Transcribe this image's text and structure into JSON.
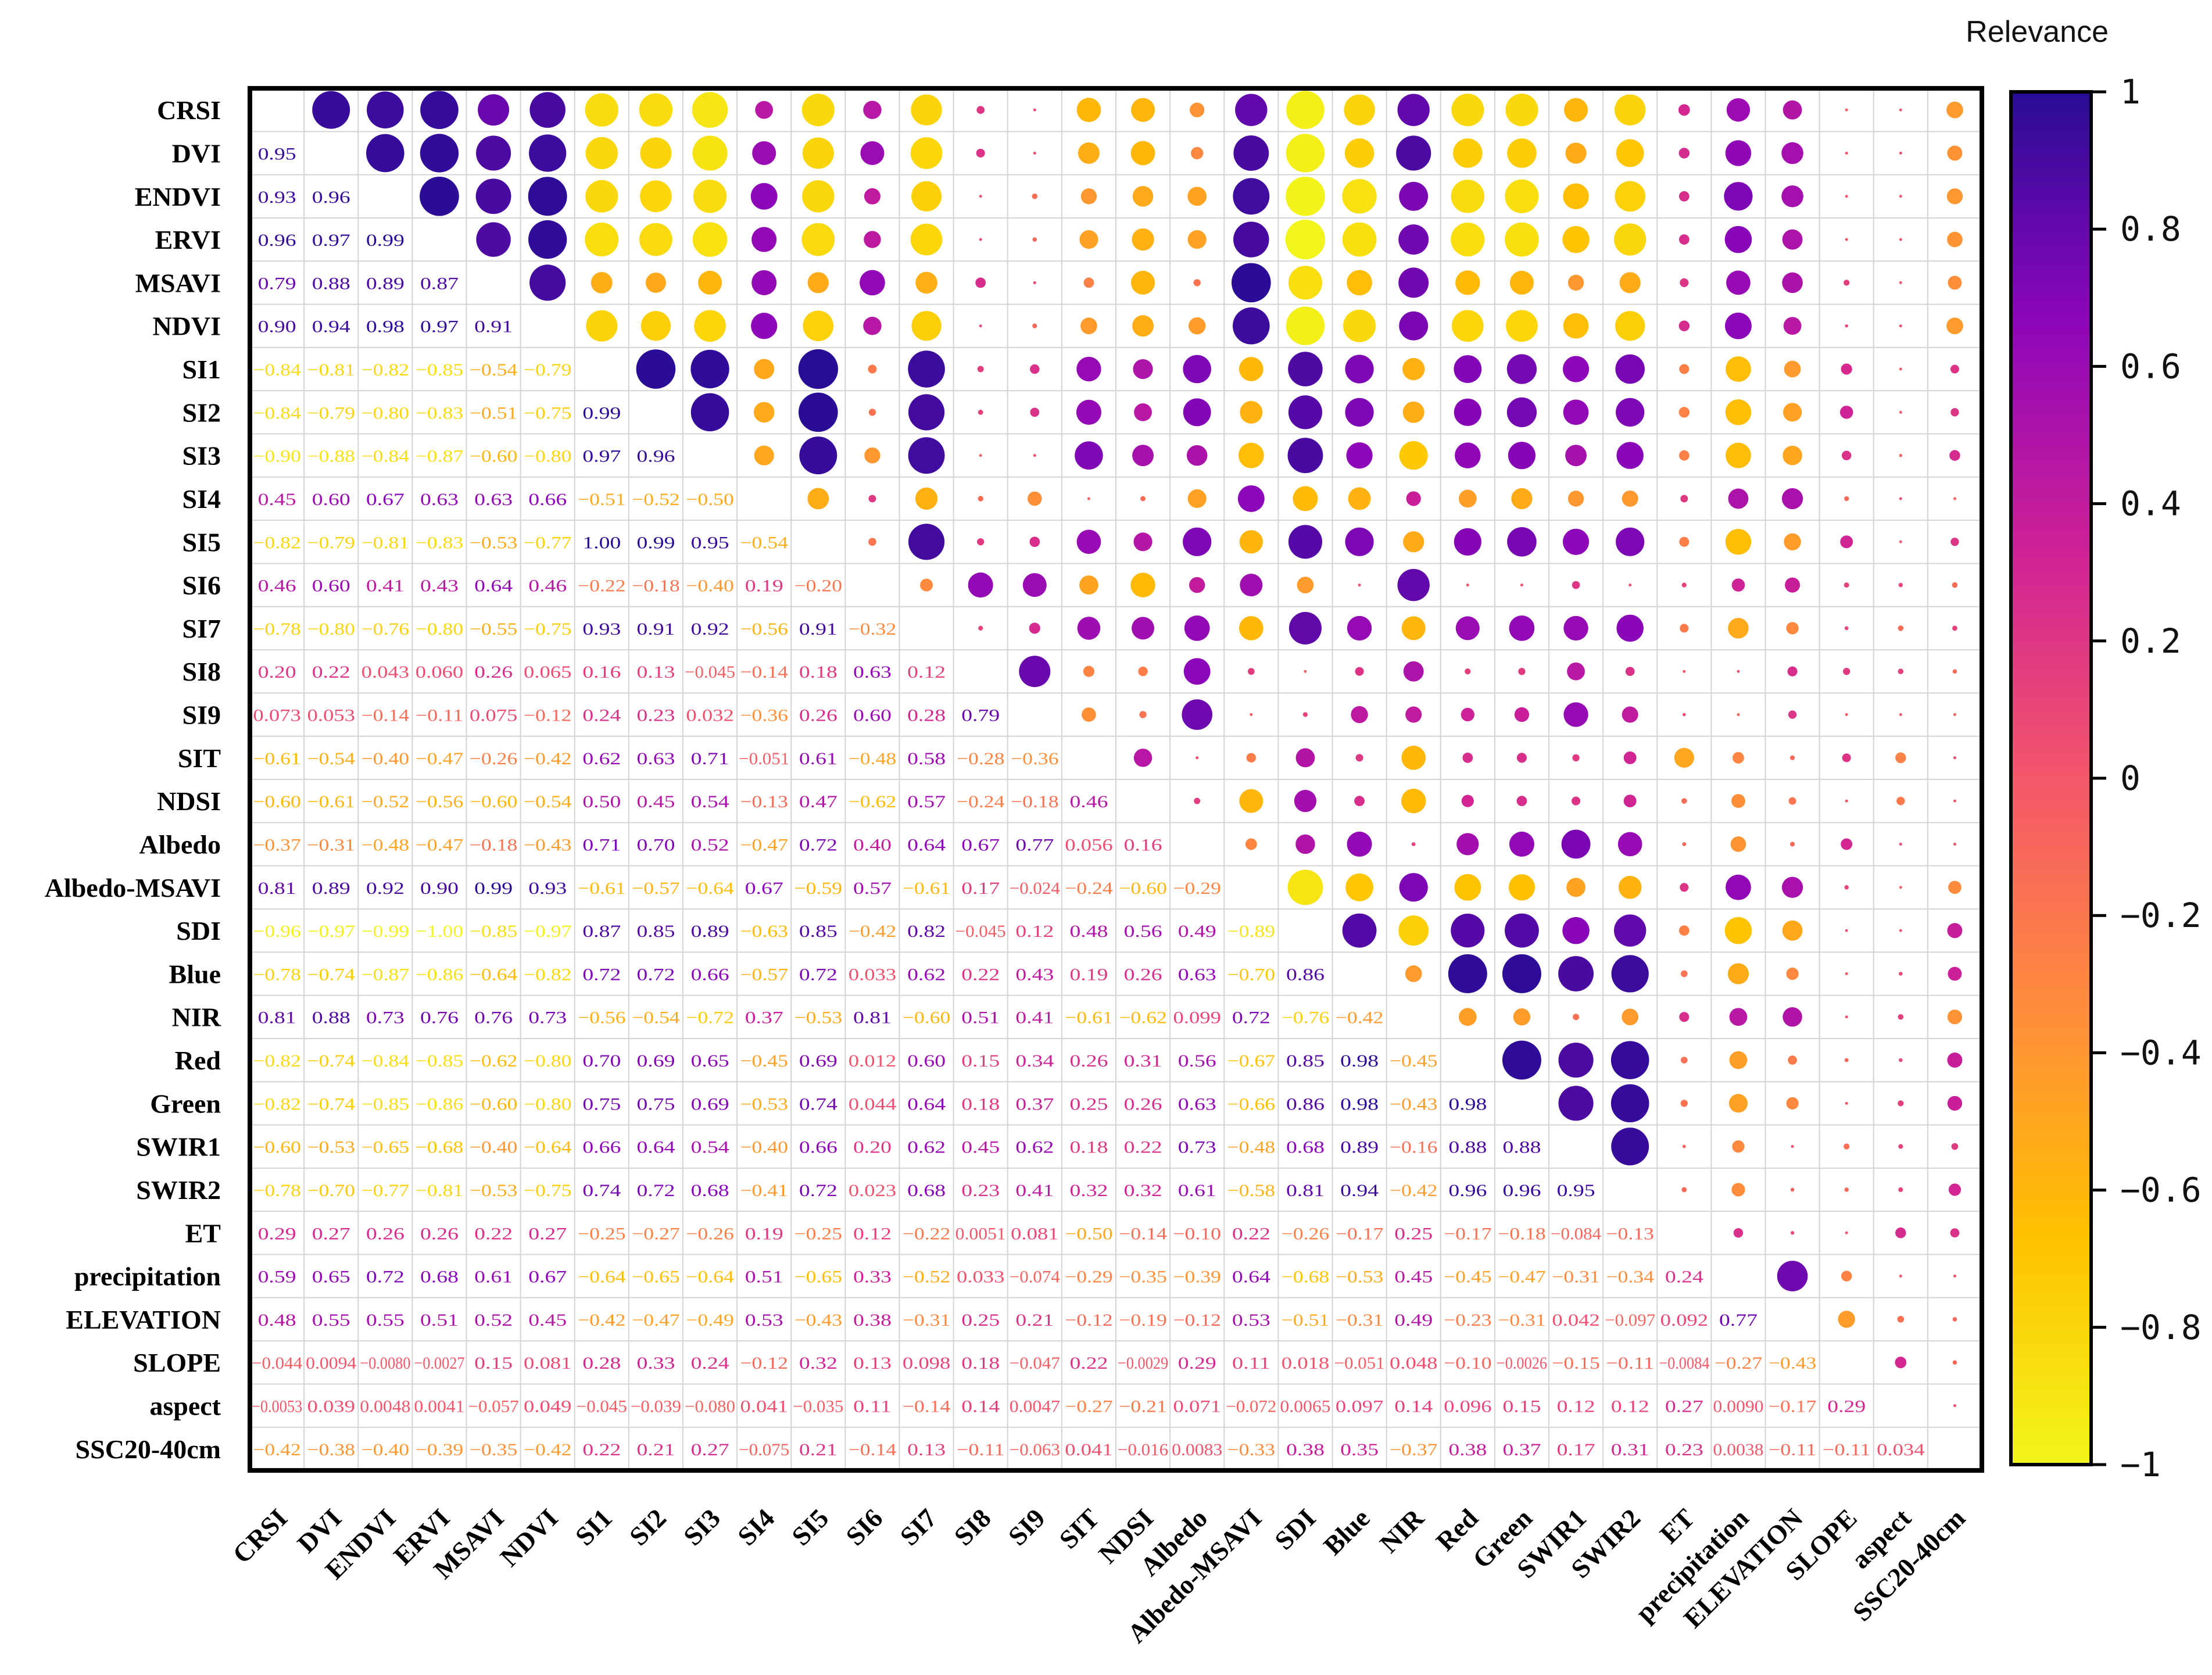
{
  "chart_data": {
    "type": "heatmap",
    "subtype": "correlation-matrix",
    "legend_title": "Relevance",
    "colorbar": {
      "range": [
        -1,
        1
      ],
      "ticks": [
        "1",
        "0.8",
        "0.6",
        "0.4",
        "0.2",
        "0",
        "−0.2",
        "−0.4",
        "−0.6",
        "−0.8",
        "−1"
      ]
    },
    "colors": {
      "scale": [
        "#f2f51c",
        "#ffc100",
        "#ff8c3c",
        "#f4566a",
        "#cf2196",
        "#8d06ba",
        "#280c96"
      ]
    },
    "variables": [
      "CRSI",
      "DVI",
      "ENDVI",
      "ERVI",
      "MSAVI",
      "NDVI",
      "SI1",
      "SI2",
      "SI3",
      "SI4",
      "SI5",
      "SI6",
      "SI7",
      "SI8",
      "SI9",
      "SIT",
      "NDSI",
      "Albedo",
      "Albedo-MSAVI",
      "SDI",
      "Blue",
      "NIR",
      "Red",
      "Green",
      "SWIR1",
      "SWIR2",
      "ET",
      "precipitation",
      "ELEVATION",
      "SLOPE",
      "aspect",
      "SSC20-40cm"
    ],
    "lower_triangle_labels": [
      [],
      [
        "0.95"
      ],
      [
        "0.93",
        "0.96"
      ],
      [
        "0.96",
        "0.97",
        "0.99"
      ],
      [
        "0.79",
        "0.88",
        "0.89",
        "0.87"
      ],
      [
        "0.90",
        "0.94",
        "0.98",
        "0.97",
        "0.91"
      ],
      [
        "−0.84",
        "−0.81",
        "−0.82",
        "−0.85",
        "−0.54",
        "−0.79"
      ],
      [
        "−0.84",
        "−0.79",
        "−0.80",
        "−0.83",
        "−0.51",
        "−0.75",
        "0.99"
      ],
      [
        "−0.90",
        "−0.88",
        "−0.84",
        "−0.87",
        "−0.60",
        "−0.80",
        "0.97",
        "0.96"
      ],
      [
        "0.45",
        "0.60",
        "0.67",
        "0.63",
        "0.63",
        "0.66",
        "−0.51",
        "−0.52",
        "−0.50"
      ],
      [
        "−0.82",
        "−0.79",
        "−0.81",
        "−0.83",
        "−0.53",
        "−0.77",
        "1.00",
        "0.99",
        "0.95",
        "−0.54"
      ],
      [
        "0.46",
        "0.60",
        "0.41",
        "0.43",
        "0.64",
        "0.46",
        "−0.22",
        "−0.18",
        "−0.40",
        "0.19",
        "−0.20"
      ],
      [
        "−0.78",
        "−0.80",
        "−0.76",
        "−0.80",
        "−0.55",
        "−0.75",
        "0.93",
        "0.91",
        "0.92",
        "−0.56",
        "0.91",
        "−0.32"
      ],
      [
        "0.20",
        "0.22",
        "0.043",
        "0.060",
        "0.26",
        "0.065",
        "0.16",
        "0.13",
        "−0.045",
        "−0.14",
        "0.18",
        "0.63",
        "0.12"
      ],
      [
        "0.073",
        "0.053",
        "−0.14",
        "−0.11",
        "0.075",
        "−0.12",
        "0.24",
        "0.23",
        "0.032",
        "−0.36",
        "0.26",
        "0.60",
        "0.28",
        "0.79"
      ],
      [
        "−0.61",
        "−0.54",
        "−0.40",
        "−0.47",
        "−0.26",
        "−0.42",
        "0.62",
        "0.63",
        "0.71",
        "−0.051",
        "0.61",
        "−0.48",
        "0.58",
        "−0.28",
        "−0.36"
      ],
      [
        "−0.60",
        "−0.61",
        "−0.52",
        "−0.56",
        "−0.60",
        "−0.54",
        "0.50",
        "0.45",
        "0.54",
        "−0.13",
        "0.47",
        "−0.62",
        "0.57",
        "−0.24",
        "−0.18",
        "0.46"
      ],
      [
        "−0.37",
        "−0.31",
        "−0.48",
        "−0.47",
        "−0.18",
        "−0.43",
        "0.71",
        "0.70",
        "0.52",
        "−0.47",
        "0.72",
        "0.40",
        "0.64",
        "0.67",
        "0.77",
        "0.056",
        "0.16"
      ],
      [
        "0.81",
        "0.89",
        "0.92",
        "0.90",
        "0.99",
        "0.93",
        "−0.61",
        "−0.57",
        "−0.64",
        "0.67",
        "−0.59",
        "0.57",
        "−0.61",
        "0.17",
        "−0.024",
        "−0.24",
        "−0.60",
        "−0.29"
      ],
      [
        "−0.96",
        "−0.97",
        "−0.99",
        "−1.00",
        "−0.85",
        "−0.97",
        "0.87",
        "0.85",
        "0.89",
        "−0.63",
        "0.85",
        "−0.42",
        "0.82",
        "−0.045",
        "0.12",
        "0.48",
        "0.56",
        "0.49",
        "−0.89"
      ],
      [
        "−0.78",
        "−0.74",
        "−0.87",
        "−0.86",
        "−0.64",
        "−0.82",
        "0.72",
        "0.72",
        "0.66",
        "−0.57",
        "0.72",
        "0.033",
        "0.62",
        "0.22",
        "0.43",
        "0.19",
        "0.26",
        "0.63",
        "−0.70",
        "0.86"
      ],
      [
        "0.81",
        "0.88",
        "0.73",
        "0.76",
        "0.76",
        "0.73",
        "−0.56",
        "−0.54",
        "−0.72",
        "0.37",
        "−0.53",
        "0.81",
        "−0.60",
        "0.51",
        "0.41",
        "−0.61",
        "−0.62",
        "0.099",
        "0.72",
        "−0.76",
        "−0.42"
      ],
      [
        "−0.82",
        "−0.74",
        "−0.84",
        "−0.85",
        "−0.62",
        "−0.80",
        "0.70",
        "0.69",
        "0.65",
        "−0.45",
        "0.69",
        "0.012",
        "0.60",
        "0.15",
        "0.34",
        "0.26",
        "0.31",
        "0.56",
        "−0.67",
        "0.85",
        "0.98",
        "−0.45"
      ],
      [
        "−0.82",
        "−0.74",
        "−0.85",
        "−0.86",
        "−0.60",
        "−0.80",
        "0.75",
        "0.75",
        "0.69",
        "−0.53",
        "0.74",
        "0.044",
        "0.64",
        "0.18",
        "0.37",
        "0.25",
        "0.26",
        "0.63",
        "−0.66",
        "0.86",
        "0.98",
        "−0.43",
        "0.98"
      ],
      [
        "−0.60",
        "−0.53",
        "−0.65",
        "−0.68",
        "−0.40",
        "−0.64",
        "0.66",
        "0.64",
        "0.54",
        "−0.40",
        "0.66",
        "0.20",
        "0.62",
        "0.45",
        "0.62",
        "0.18",
        "0.22",
        "0.73",
        "−0.48",
        "0.68",
        "0.89",
        "−0.16",
        "0.88",
        "0.88"
      ],
      [
        "−0.78",
        "−0.70",
        "−0.77",
        "−0.81",
        "−0.53",
        "−0.75",
        "0.74",
        "0.72",
        "0.68",
        "−0.41",
        "0.72",
        "0.023",
        "0.68",
        "0.23",
        "0.41",
        "0.32",
        "0.32",
        "0.61",
        "−0.58",
        "0.81",
        "0.94",
        "−0.42",
        "0.96",
        "0.96",
        "0.95"
      ],
      [
        "0.29",
        "0.27",
        "0.26",
        "0.26",
        "0.22",
        "0.27",
        "−0.25",
        "−0.27",
        "−0.26",
        "0.19",
        "−0.25",
        "0.12",
        "−0.22",
        "0.0051",
        "0.081",
        "−0.50",
        "−0.14",
        "−0.10",
        "0.22",
        "−0.26",
        "−0.17",
        "0.25",
        "−0.17",
        "−0.18",
        "−0.084",
        "−0.13"
      ],
      [
        "0.59",
        "0.65",
        "0.72",
        "0.68",
        "0.61",
        "0.67",
        "−0.64",
        "−0.65",
        "−0.64",
        "0.51",
        "−0.65",
        "0.33",
        "−0.52",
        "0.033",
        "−0.074",
        "−0.29",
        "−0.35",
        "−0.39",
        "0.64",
        "−0.68",
        "−0.53",
        "0.45",
        "−0.45",
        "−0.47",
        "−0.31",
        "−0.34",
        "0.24"
      ],
      [
        "0.48",
        "0.55",
        "0.55",
        "0.51",
        "0.52",
        "0.45",
        "−0.42",
        "−0.47",
        "−0.49",
        "0.53",
        "−0.43",
        "0.38",
        "−0.31",
        "0.25",
        "0.21",
        "−0.12",
        "−0.19",
        "−0.12",
        "0.53",
        "−0.51",
        "−0.31",
        "0.49",
        "−0.23",
        "−0.31",
        "0.042",
        "−0.097",
        "0.092",
        "0.77"
      ],
      [
        "−0.044",
        "0.0094",
        "−0.0080",
        "−0.0027",
        "0.15",
        "0.081",
        "0.28",
        "0.33",
        "0.24",
        "−0.12",
        "0.32",
        "0.13",
        "0.098",
        "0.18",
        "−0.047",
        "0.22",
        "−0.0029",
        "0.29",
        "0.11",
        "0.018",
        "−0.051",
        "0.048",
        "−0.10",
        "−0.0026",
        "−0.15",
        "−0.11",
        "−0.0084",
        "−0.27",
        "−0.43"
      ],
      [
        "−0.0053",
        "0.039",
        "0.0048",
        "0.0041",
        "−0.057",
        "0.049",
        "−0.045",
        "−0.039",
        "−0.080",
        "0.041",
        "−0.035",
        "0.11",
        "−0.14",
        "0.14",
        "0.0047",
        "−0.27",
        "−0.21",
        "0.071",
        "−0.072",
        "0.0065",
        "0.097",
        "0.14",
        "0.096",
        "0.15",
        "0.12",
        "0.12",
        "0.27",
        "0.0090",
        "−0.17",
        "0.29"
      ],
      [
        "−0.42",
        "−0.38",
        "−0.40",
        "−0.39",
        "−0.35",
        "−0.42",
        "0.22",
        "0.21",
        "0.27",
        "−0.075",
        "0.21",
        "−0.14",
        "0.13",
        "−0.11",
        "−0.063",
        "0.041",
        "−0.016",
        "0.0083",
        "−0.33",
        "0.38",
        "0.35",
        "−0.37",
        "0.38",
        "0.37",
        "0.17",
        "0.31",
        "0.23",
        "0.0038",
        "−0.11",
        "−0.11",
        "0.034"
      ]
    ]
  }
}
